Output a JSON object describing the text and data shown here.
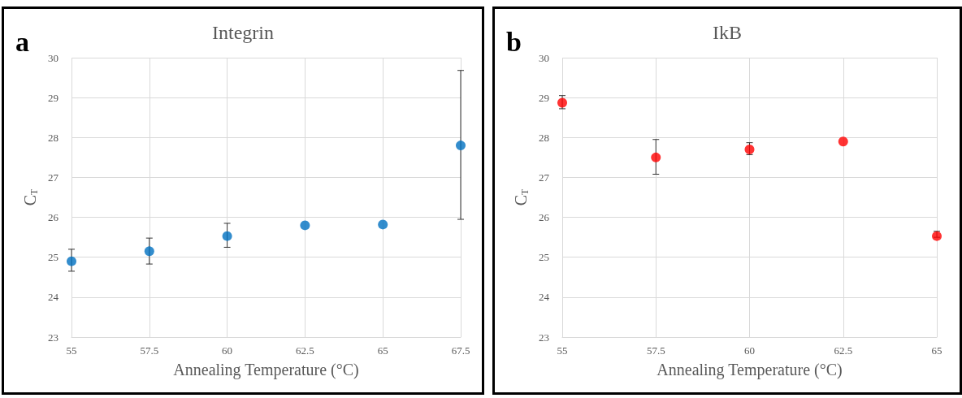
{
  "chart_data": [
    {
      "type": "scatter",
      "title": "Integrin",
      "xlabel": "Annealing Temperature (°C)",
      "ylabel": "C$_{T}$",
      "annotations": [
        "a"
      ],
      "x": [
        55,
        57.5,
        60,
        62.5,
        65,
        67.5
      ],
      "series": [
        {
          "color": "#0070c0",
          "values": [
            24.9,
            25.15,
            25.53,
            25.8,
            25.82,
            27.8
          ],
          "errors": [
            [
              24.65,
              25.2
            ],
            [
              24.83,
              25.48
            ],
            [
              25.25,
              25.85
            ],
            null,
            null,
            [
              25.95,
              29.68
            ]
          ]
        }
      ],
      "xlim": [
        55,
        67.5
      ],
      "xticks": [
        55,
        57.5,
        60,
        62.5,
        65,
        67.5
      ],
      "ylim": [
        23,
        30
      ],
      "yticks": [
        23,
        24,
        25,
        26,
        27,
        28,
        29,
        30
      ],
      "grid": true,
      "marker": "circle"
    },
    {
      "type": "scatter",
      "title": "IkB",
      "xlabel": "Annealing Temperature (°C)",
      "ylabel": "C$_{T}$",
      "annotations": [
        "b"
      ],
      "x": [
        55,
        57.5,
        60,
        62.5,
        65
      ],
      "series": [
        {
          "color": "#ff0000",
          "values": [
            28.87,
            27.5,
            27.7,
            27.9,
            25.53
          ],
          "errors": [
            [
              28.72,
              29.05
            ],
            [
              27.08,
              27.95
            ],
            [
              27.57,
              27.87
            ],
            null,
            [
              25.5,
              25.65
            ]
          ]
        }
      ],
      "xlim": [
        55,
        65
      ],
      "xticks": [
        55,
        57.5,
        60,
        62.5,
        65
      ],
      "ylim": [
        23,
        30
      ],
      "yticks": [
        23,
        24,
        25,
        26,
        27,
        28,
        29,
        30
      ],
      "grid": true,
      "marker": "circle"
    }
  ]
}
